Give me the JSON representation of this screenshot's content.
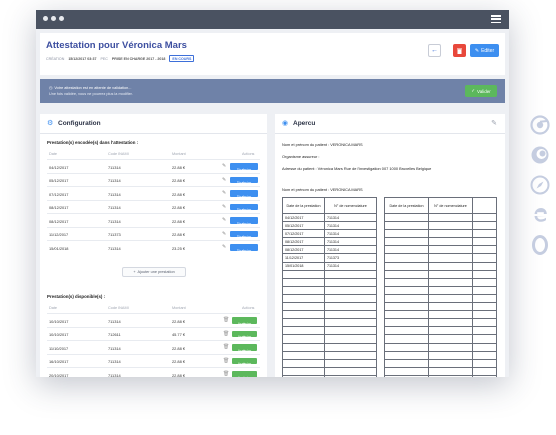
{
  "window": {
    "menu_icon": "hamburger-icon"
  },
  "header": {
    "title": "Attestation pour Véronica Mars",
    "meta_creation_label": "CRÉATION",
    "meta_creation_value": "15/12/2017 03:37",
    "meta_pec_label": "PEC",
    "meta_pec_value": "PRISE EN CHARGE 2017 - 2018",
    "meta_status": "EN COURS",
    "edit_label": "Editer"
  },
  "notice": {
    "line1": "Votre attestation est en attente de validation...",
    "line2": "Une fois validée, vous ne pourrez plus la modifier.",
    "validate_label": "Valider"
  },
  "config": {
    "title": "Configuration",
    "encoded_title": "Prestation(s) encodée(s) dans l'attestation :",
    "available_title": "Prestation(s) disponible(s) :",
    "columns": {
      "date": "Date",
      "code": "Code INAMI",
      "amount": "Montant",
      "actions": "Actions"
    },
    "encoded_rows": [
      {
        "date": "04/12/2017",
        "code": "711314",
        "amount": "22.88 €",
        "action": "Dissocier"
      },
      {
        "date": "05/12/2017",
        "code": "711314",
        "amount": "22.88 €",
        "action": "Dissocier"
      },
      {
        "date": "07/12/2017",
        "code": "711314",
        "amount": "22.88 €",
        "action": "Dissocier"
      },
      {
        "date": "08/12/2017",
        "code": "711314",
        "amount": "22.88 €",
        "action": "Dissocier"
      },
      {
        "date": "08/12/2017",
        "code": "711314",
        "amount": "22.88 €",
        "action": "Dissocier"
      },
      {
        "date": "11/12/2017",
        "code": "711373",
        "amount": "22.88 €",
        "action": "Dissocier"
      },
      {
        "date": "15/01/2018",
        "code": "711314",
        "amount": "23.25 €",
        "action": "Dissocier"
      }
    ],
    "add_label": "Ajouter une prestation",
    "available_rows": [
      {
        "date": "10/10/2017",
        "code": "711314",
        "amount": "22.88 €",
        "action": "Associer"
      },
      {
        "date": "10/10/2017",
        "code": "712611",
        "amount": "45.77 €",
        "action": "Associer"
      },
      {
        "date": "11/10/2017",
        "code": "711314",
        "amount": "22.88 €",
        "action": "Associer"
      },
      {
        "date": "16/10/2017",
        "code": "711314",
        "amount": "22.88 €",
        "action": "Associer"
      },
      {
        "date": "20/10/2017",
        "code": "711314",
        "amount": "22.88 €",
        "action": "Associer"
      }
    ]
  },
  "apercu": {
    "title": "Apercu",
    "line1": "Nom et prénom du patient : VERONICA MARS",
    "line2": "Organisme assureur :",
    "line3": "Adresse du patient : Véronica Mars Rue de l'investigation 007 1000 Bruxelles Belgique",
    "line4": "Nom et prénom du patient : VERONICA MARS",
    "col_date": "Date de la prestation",
    "col_code": "N° de nomenclature",
    "rows": [
      {
        "date": "04/12/2017",
        "code": "711314"
      },
      {
        "date": "05/12/2017",
        "code": "711314"
      },
      {
        "date": "07/12/2017",
        "code": "711314"
      },
      {
        "date": "08/12/2017",
        "code": "711314"
      },
      {
        "date": "08/12/2017",
        "code": "711314"
      },
      {
        "date": "11/12/2017",
        "code": "711373"
      },
      {
        "date": "15/01/2018",
        "code": "711314"
      }
    ]
  },
  "browsers": [
    "chrome-icon",
    "firefox-icon",
    "safari-icon",
    "edge-icon",
    "opera-icon"
  ]
}
